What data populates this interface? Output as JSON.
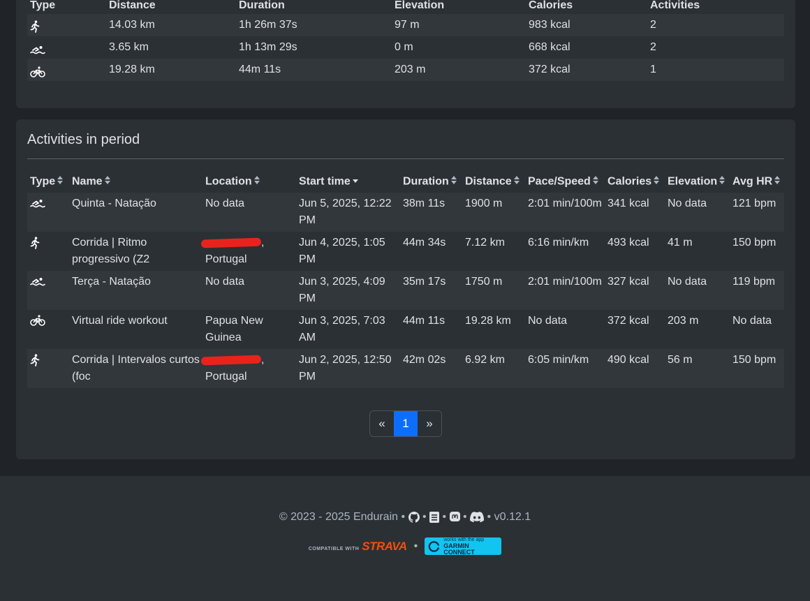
{
  "summary": {
    "headers": [
      "Type",
      "Distance",
      "Duration",
      "Elevation",
      "Calories",
      "Activities"
    ],
    "rows": [
      {
        "icon": "run-icon",
        "distance": "14.03 km",
        "duration": "1h 26m 37s",
        "elevation": "97 m",
        "calories": "983 kcal",
        "activities": "2"
      },
      {
        "icon": "swim-icon",
        "distance": "3.65 km",
        "duration": "1h 13m 29s",
        "elevation": "0 m",
        "calories": "668 kcal",
        "activities": "2"
      },
      {
        "icon": "bike-icon",
        "distance": "19.28 km",
        "duration": "44m 11s",
        "elevation": "203 m",
        "calories": "372 kcal",
        "activities": "1"
      }
    ]
  },
  "activities": {
    "title": "Activities in period",
    "headers": {
      "type": "Type",
      "name": "Name",
      "location": "Location",
      "start_time": "Start time",
      "duration": "Duration",
      "distance": "Distance",
      "pace": "Pace/Speed",
      "calories": "Calories",
      "elevation": "Elevation",
      "avg_hr": "Avg HR"
    },
    "rows": [
      {
        "icon": "swim-icon",
        "name": "Quinta - Natação",
        "location_prefix": "",
        "location": "No data",
        "redacted": false,
        "start_time": "Jun 5, 2025, 12:22 PM",
        "duration": "38m 11s",
        "distance": "1900 m",
        "pace": "2:01 min/100m",
        "calories": "341 kcal",
        "elevation": "No data",
        "avg_hr": "121 bpm"
      },
      {
        "icon": "run-icon",
        "name": "Corrida | Ritmo progressivo (Z2",
        "location_prefix": ",",
        "location": "Portugal",
        "redacted": true,
        "start_time": "Jun 4, 2025, 1:05 PM",
        "duration": "44m 34s",
        "distance": "7.12 km",
        "pace": "6:16 min/km",
        "calories": "493 kcal",
        "elevation": "41 m",
        "avg_hr": "150 bpm"
      },
      {
        "icon": "swim-icon",
        "name": "Terça - Natação",
        "location_prefix": "",
        "location": "No data",
        "redacted": false,
        "start_time": "Jun 3, 2025, 4:09 PM",
        "duration": "35m 17s",
        "distance": "1750 m",
        "pace": "2:01 min/100m",
        "calories": "327 kcal",
        "elevation": "No data",
        "avg_hr": "119 bpm"
      },
      {
        "icon": "bike-icon",
        "name": "Virtual ride workout",
        "location_prefix": "",
        "location": "Papua New Guinea",
        "redacted": false,
        "start_time": "Jun 3, 2025, 7:03 AM",
        "duration": "44m 11s",
        "distance": "19.28 km",
        "pace": "No data",
        "calories": "372 kcal",
        "elevation": "203 m",
        "avg_hr": "No data"
      },
      {
        "icon": "run-icon",
        "name": "Corrida | Intervalos curtos (foc",
        "location_prefix": ",",
        "location": "Portugal",
        "redacted": true,
        "start_time": "Jun 2, 2025, 12:50 PM",
        "duration": "42m 02s",
        "distance": "6.92 km",
        "pace": "6:05 min/km",
        "calories": "490 kcal",
        "elevation": "56 m",
        "avg_hr": "150 bpm"
      }
    ]
  },
  "pagination": {
    "prev": "«",
    "current": "1",
    "next": "»"
  },
  "footer": {
    "copyright": "© 2023 - 2025 Endurain",
    "separator": "•",
    "version": "v0.12.1",
    "strava_small": "COMPATIBLE WITH",
    "strava_logo": "STRAVA",
    "garmin_small": "works with the app",
    "garmin_main": "GARMIN CONNECT"
  },
  "colors": {
    "accent": "#0d6efd",
    "strava": "#fc4c02",
    "garmin": "#11c5f0",
    "redaction": "#e8231d"
  }
}
